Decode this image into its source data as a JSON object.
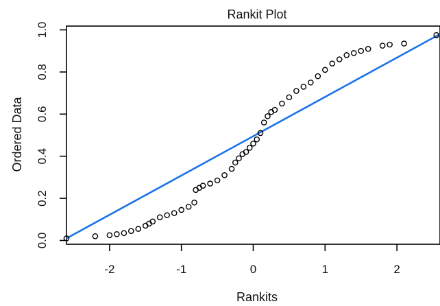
{
  "chart_data": {
    "type": "scatter",
    "title": "Rankit Plot",
    "xlabel": "Rankits",
    "ylabel": "Ordered Data",
    "xlim": [
      -2.6,
      2.6
    ],
    "ylim": [
      0.0,
      1.0
    ],
    "xticks": [
      -2,
      -1,
      0,
      1,
      2
    ],
    "xtick_labels": [
      "-2",
      "-1",
      "0",
      "1",
      "2"
    ],
    "yticks": [
      0.0,
      0.2,
      0.4,
      0.6,
      0.8,
      1.0
    ],
    "ytick_labels": [
      "0.0",
      "0.2",
      "0.4",
      "0.6",
      "0.8",
      "1.0"
    ],
    "grid": false,
    "reference_line": {
      "from": [
        -2.6,
        0.01
      ],
      "to": [
        2.6,
        0.98
      ],
      "color": "#1a73e8"
    },
    "series": [
      {
        "marker": "circle-open",
        "color": "#000000",
        "points": [
          [
            -2.6,
            0.01
          ],
          [
            -2.2,
            0.02
          ],
          [
            -2.0,
            0.025
          ],
          [
            -1.9,
            0.03
          ],
          [
            -1.8,
            0.035
          ],
          [
            -1.7,
            0.045
          ],
          [
            -1.6,
            0.055
          ],
          [
            -1.5,
            0.07
          ],
          [
            -1.45,
            0.08
          ],
          [
            -1.4,
            0.09
          ],
          [
            -1.3,
            0.11
          ],
          [
            -1.2,
            0.12
          ],
          [
            -1.1,
            0.13
          ],
          [
            -1.0,
            0.145
          ],
          [
            -0.9,
            0.16
          ],
          [
            -0.82,
            0.18
          ],
          [
            -0.8,
            0.24
          ],
          [
            -0.75,
            0.25
          ],
          [
            -0.7,
            0.26
          ],
          [
            -0.6,
            0.27
          ],
          [
            -0.5,
            0.285
          ],
          [
            -0.4,
            0.31
          ],
          [
            -0.3,
            0.34
          ],
          [
            -0.25,
            0.37
          ],
          [
            -0.2,
            0.39
          ],
          [
            -0.15,
            0.41
          ],
          [
            -0.1,
            0.42
          ],
          [
            -0.05,
            0.44
          ],
          [
            0.0,
            0.46
          ],
          [
            0.05,
            0.48
          ],
          [
            0.1,
            0.51
          ],
          [
            0.15,
            0.56
          ],
          [
            0.2,
            0.59
          ],
          [
            0.25,
            0.61
          ],
          [
            0.3,
            0.62
          ],
          [
            0.4,
            0.65
          ],
          [
            0.5,
            0.68
          ],
          [
            0.6,
            0.71
          ],
          [
            0.7,
            0.73
          ],
          [
            0.8,
            0.75
          ],
          [
            0.9,
            0.78
          ],
          [
            1.0,
            0.81
          ],
          [
            1.1,
            0.84
          ],
          [
            1.2,
            0.86
          ],
          [
            1.3,
            0.88
          ],
          [
            1.4,
            0.89
          ],
          [
            1.5,
            0.9
          ],
          [
            1.6,
            0.91
          ],
          [
            1.8,
            0.925
          ],
          [
            1.9,
            0.93
          ],
          [
            2.1,
            0.935
          ],
          [
            2.55,
            0.975
          ]
        ]
      }
    ]
  }
}
